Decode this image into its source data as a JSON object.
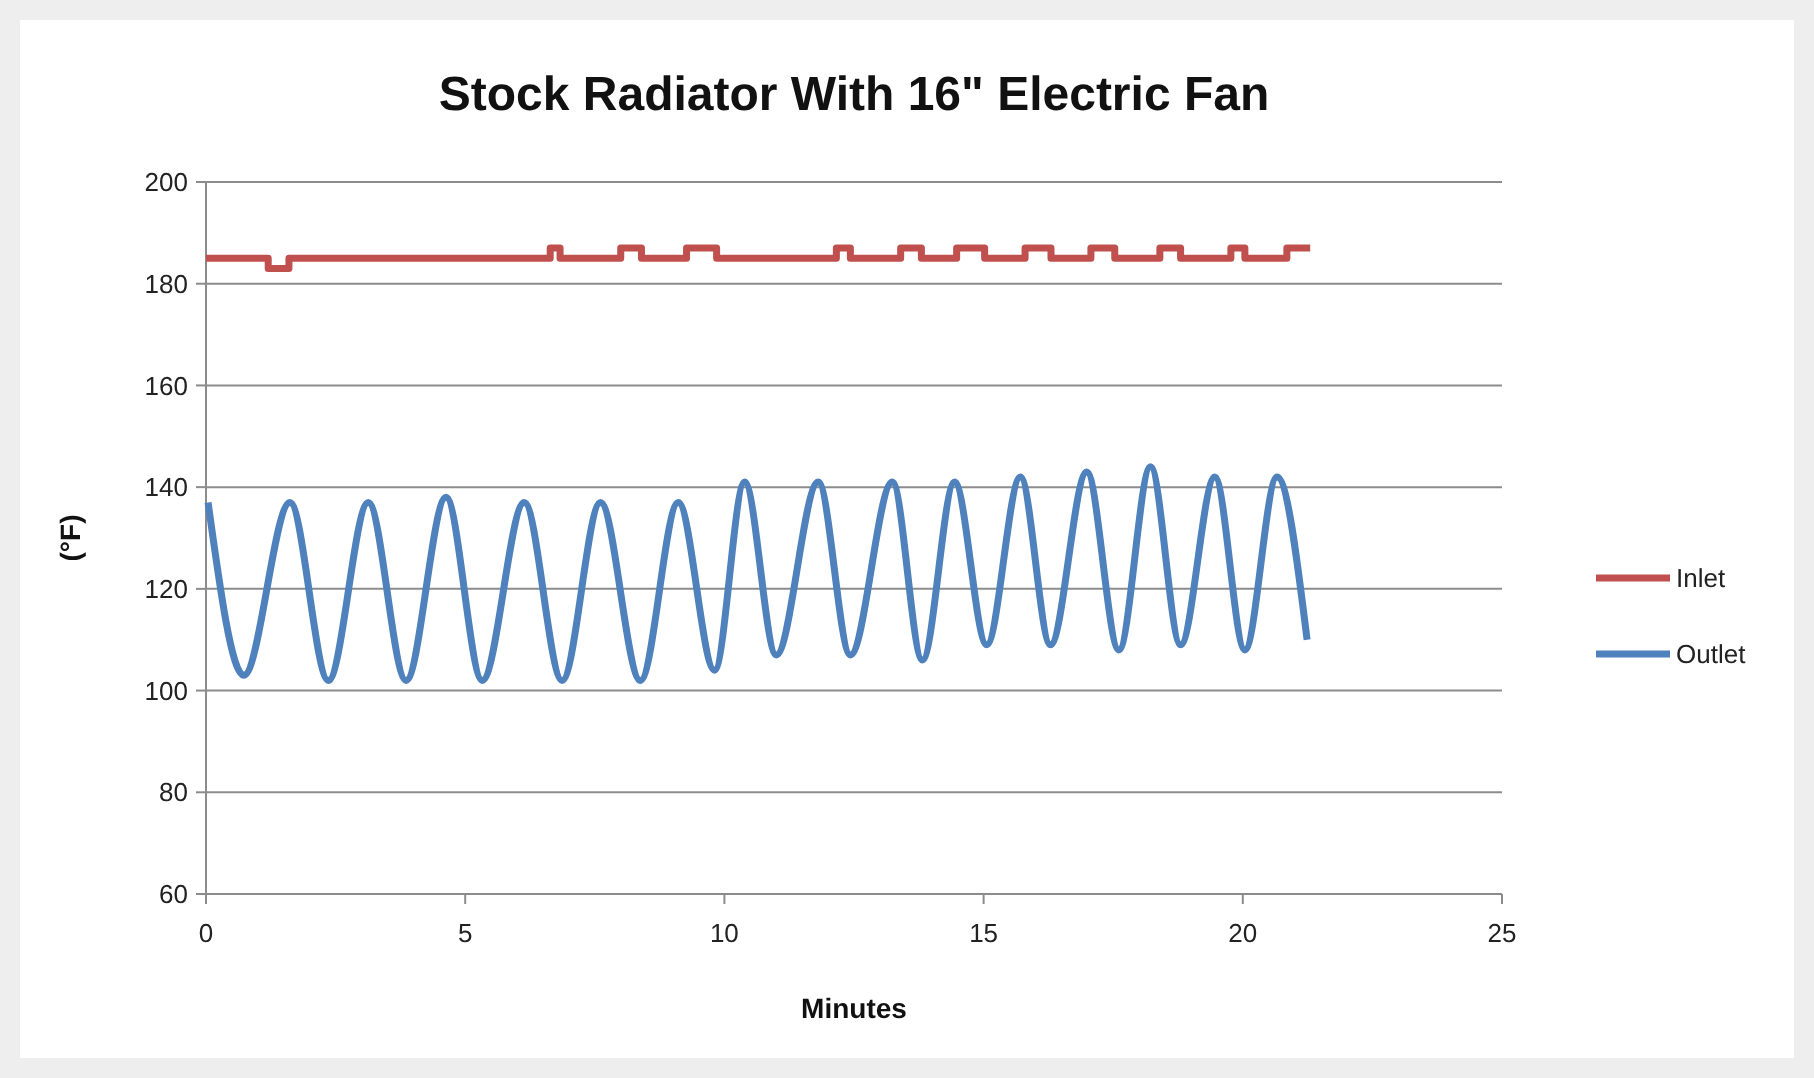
{
  "chart_data": {
    "type": "line",
    "title": "Stock Radiator With 16\" Electric Fan",
    "xlabel": "Minutes",
    "ylabel": "(°F)",
    "xlim": [
      0,
      25
    ],
    "xticks": [
      0,
      5,
      10,
      15,
      20,
      25
    ],
    "ylim": [
      60,
      200
    ],
    "yticks": [
      60,
      80,
      100,
      120,
      140,
      160,
      180,
      200
    ],
    "grid": "y",
    "legend": "right",
    "marker": "none",
    "line_style": "solid",
    "series": [
      {
        "name": "Inlet",
        "type": "step",
        "color": "#c0504d",
        "x": [
          0,
          1.2,
          1.6,
          6.64,
          6.83,
          8.0,
          8.4,
          9.27,
          9.85,
          12.16,
          12.43,
          13.4,
          13.8,
          14.48,
          15.02,
          15.8,
          16.3,
          17.07,
          17.53,
          18.4,
          18.8,
          19.77,
          20.04,
          20.85,
          21.3
        ],
        "values": [
          185,
          183,
          185,
          187,
          185,
          187,
          185,
          187,
          185,
          187,
          185,
          187,
          185,
          187,
          185,
          187,
          185,
          187,
          185,
          187,
          185,
          187,
          185,
          187,
          187
        ]
      },
      {
        "name": "Outlet",
        "color": "#4f81bd",
        "x": [
          0.04,
          0.73,
          1.62,
          2.36,
          3.13,
          3.86,
          4.63,
          5.33,
          6.14,
          6.87,
          7.61,
          8.38,
          9.11,
          9.81,
          10.39,
          11.0,
          11.81,
          12.43,
          13.24,
          13.82,
          14.44,
          15.06,
          15.71,
          16.29,
          16.99,
          17.61,
          18.22,
          18.8,
          19.46,
          20.04,
          20.66,
          21.24
        ],
        "values": [
          137,
          103,
          137,
          102,
          137,
          102,
          138,
          102,
          137,
          102,
          137,
          102,
          137,
          104,
          141,
          107,
          141,
          107,
          141,
          106,
          141,
          109,
          142,
          109,
          143,
          108,
          144,
          109,
          142,
          108,
          142,
          110
        ]
      }
    ]
  }
}
